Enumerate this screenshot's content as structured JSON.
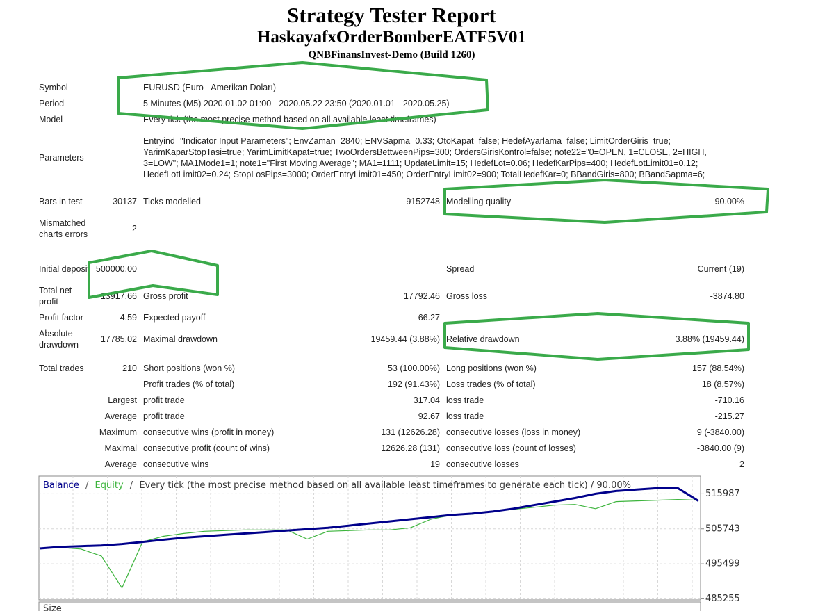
{
  "header": {
    "title": "Strategy Tester Report",
    "expert": "HaskayafxOrderBomberEATF5V01",
    "server": "QNBFinansInvest-Demo (Build 1260)"
  },
  "report": {
    "rows": [
      [
        "Symbol",
        "EURUSD (Euro - Amerikan Doları)"
      ],
      [
        "Period",
        "5 Minutes (M5) 2020.01.02 01:00 - 2020.05.22 23:50 (2020.01.01 - 2020.05.25)"
      ],
      [
        "Model",
        "Every tick (the most precise method based on all available least timeframes)"
      ],
      [
        "Parameters",
        "Entryind=\"Indicator Input Parameters\"; EnvZaman=2840; ENVSapma=0.33; OtoKapat=false; HedefAyarlama=false; LimitOrderGiris=true; YarimKaparStopTasi=true; YarimLimitKapat=true; TwoOrdersBettweenPips=300; OrdersGirisKontrol=false; note22=\"0=OPEN, 1=CLOSE, 2=HIGH, 3=LOW\"; MA1Mode1=1; note1=\"First Moving Average\"; MA1=1111; UpdateLimit=15; HedefLot=0.06; HedefKarPips=400; HedefLotLimit01=0.12; HedefLotLimit02=0.24; StopLosPips=3000; OrderEntryLimit01=450; OrderEntryLimit02=900; TotalHedefKar=0; BBandGiris=800; BBandSapma=6;"
      ],
      [
        "Bars in test",
        "30137",
        "Ticks modelled",
        "9152748",
        "Modelling quality",
        "90.00%"
      ],
      [
        "Mismatched charts errors",
        "2",
        null,
        null,
        null,
        null
      ],
      [
        "Initial deposit",
        "500000.00",
        null,
        null,
        "Spread",
        "Current (19)"
      ],
      [
        "Total net profit",
        "13917.66",
        "Gross profit",
        "17792.46",
        "Gross loss",
        "-3874.80"
      ],
      [
        "Profit factor",
        "4.59",
        "Expected payoff",
        "66.27",
        null,
        null
      ],
      [
        "Absolute drawdown",
        "17785.02",
        "Maximal drawdown",
        "19459.44 (3.88%)",
        "Relative drawdown",
        "3.88% (19459.44)"
      ],
      [
        "Total trades",
        "210",
        "Short positions (won %)",
        "53 (100.00%)",
        "Long positions (won %)",
        "157 (88.54%)"
      ],
      [
        null,
        null,
        "Profit trades (% of total)",
        "192 (91.43%)",
        "Loss trades (% of total)",
        "18 (8.57%)"
      ],
      [
        null,
        "Largest",
        "profit trade",
        "317.04",
        "loss trade",
        "-710.16"
      ],
      [
        null,
        "Average",
        "profit trade",
        "92.67",
        "loss trade",
        "-215.27"
      ],
      [
        null,
        "Maximum",
        "consecutive wins (profit in money)",
        "131 (12626.28)",
        "consecutive losses (loss in money)",
        "9 (-3840.00)"
      ],
      [
        null,
        "Maximal",
        "consecutive profit (count of wins)",
        "12626.28 (131)",
        "consecutive loss (count of losses)",
        "-3840.00 (9)"
      ],
      [
        null,
        "Average",
        "consecutive wins",
        "19",
        "consecutive losses",
        "2"
      ]
    ]
  },
  "chart_data": {
    "type": "line",
    "separator": "/",
    "note": "Every tick (the most precise method based on all available least timeframes to generate each tick) / 90.00%",
    "size_label": "Size",
    "ylim": [
      484937,
      521162
    ],
    "yticks": [
      515987,
      505743,
      495499,
      485255
    ],
    "grid": true,
    "series": [
      {
        "name": "Balance",
        "color": "#00008b",
        "values": [
          500000,
          500462,
          500669,
          500876,
          501290,
          501911,
          502532,
          503153,
          503567,
          503981,
          504395,
          504809,
          505223,
          505637,
          506051,
          506672,
          507293,
          507914,
          508535,
          509156,
          509777,
          510191,
          510812,
          511640,
          512675,
          513710,
          514745,
          515987,
          516815,
          517229,
          517643,
          517643,
          513918
        ]
      },
      {
        "name": "Equity",
        "color": "#3cb43c",
        "values": [
          500000,
          500255,
          499841,
          497771,
          488456,
          501911,
          503567,
          504395,
          505016,
          505223,
          505430,
          505430,
          505430,
          502739,
          505016,
          505223,
          505430,
          505430,
          506051,
          508535,
          509777,
          509984,
          510812,
          511433,
          512054,
          512675,
          512882,
          511640,
          513710,
          513917,
          514124,
          514331,
          514124
        ]
      }
    ]
  }
}
